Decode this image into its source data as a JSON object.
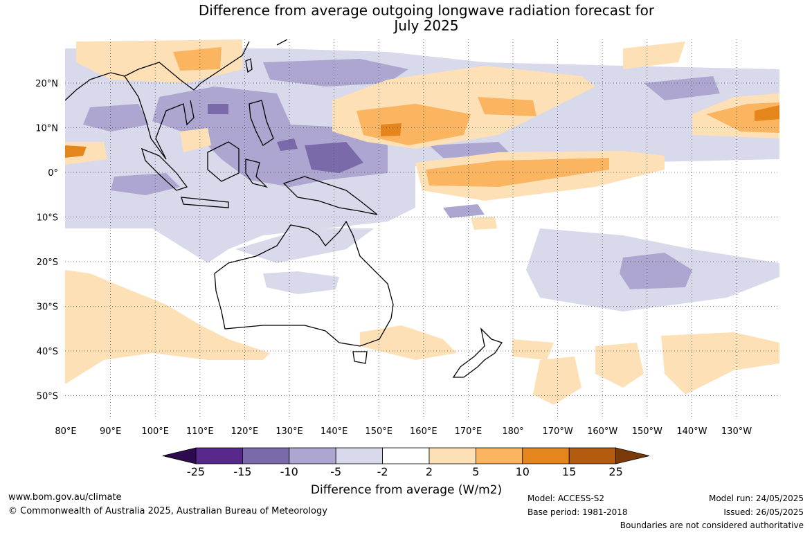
{
  "title": {
    "line1": "Difference from average outgoing longwave radiation forecast for",
    "line2": "July 2025"
  },
  "map": {
    "lat_labels": [
      "20°N",
      "10°N",
      "0°",
      "10°S",
      "20°S",
      "30°S",
      "40°S",
      "50°S"
    ],
    "lon_labels": [
      "80°E",
      "90°E",
      "100°E",
      "110°E",
      "120°E",
      "130°E",
      "140°E",
      "150°E",
      "160°E",
      "170°E",
      "180°",
      "170°W",
      "160°W",
      "150°W",
      "140°W",
      "130°W"
    ]
  },
  "colorbar": {
    "tick_labels": [
      "-25",
      "-15",
      "-10",
      "-5",
      "-2",
      "2",
      "5",
      "10",
      "15",
      "25"
    ],
    "label": "Difference from average (W/m2)",
    "colors": {
      "below_min": "#2d0a4e",
      "bin_1": "#56298a",
      "bin_2": "#7a6aaa",
      "bin_3": "#aca6d0",
      "bin_4": "#d8d9ea",
      "bin_5": "#ffffff",
      "bin_6": "#fde0b6",
      "bin_7": "#fbb45f",
      "bin_8": "#e5861c",
      "bin_9": "#b35b0f",
      "above_max": "#7a3a0a"
    }
  },
  "footer": {
    "website": "www.bom.gov.au/climate",
    "copyright": "© Commonwealth of Australia 2025, Australian Bureau of Meteorology",
    "model": "Model: ACCESS-S2",
    "base_period": "Base period: 1981-2018",
    "model_run": "Model run: 24/05/2025",
    "issued": "Issued: 26/05/2025",
    "boundaries_note": "Boundaries are not considered authoritative"
  }
}
